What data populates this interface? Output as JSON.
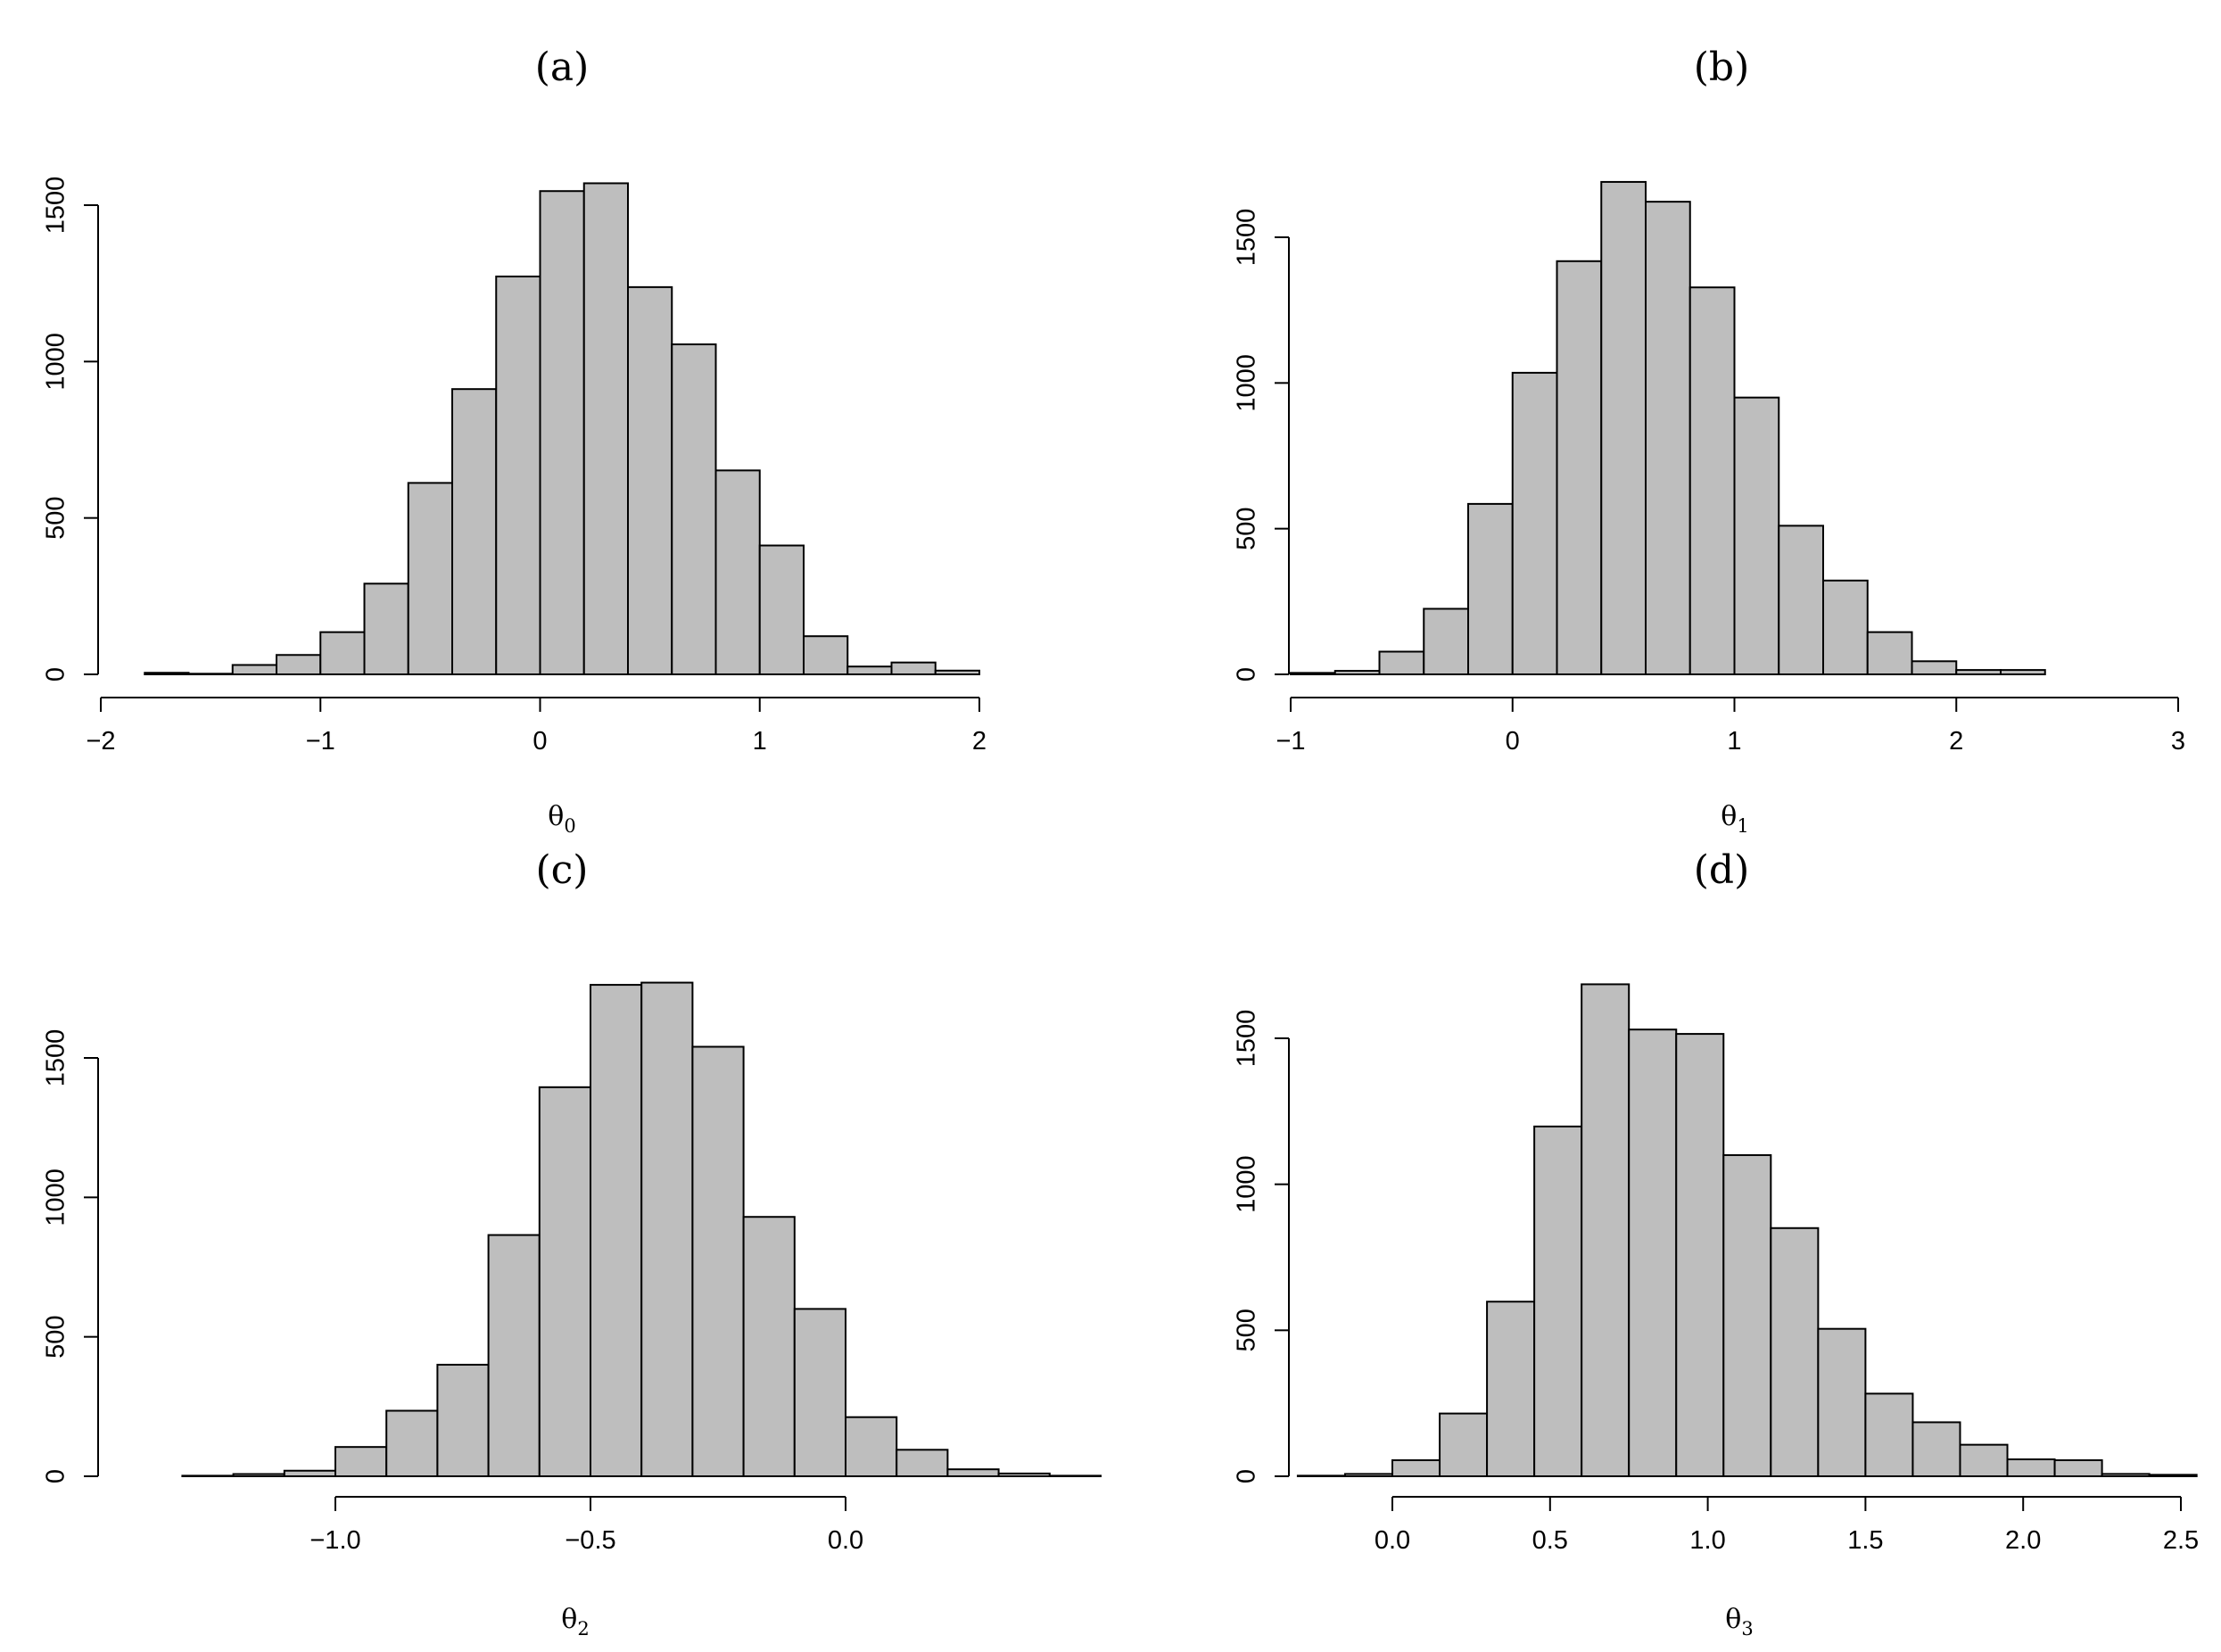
{
  "chart_data": [
    {
      "type": "bar",
      "title": "(a)",
      "xlabel": "θ",
      "xlabel_sub": "0",
      "ylabel": "",
      "bin_width": 0.2,
      "bin_start": -1.8,
      "values": [
        5,
        2,
        30,
        62,
        135,
        290,
        612,
        912,
        1272,
        1545,
        1570,
        1238,
        1055,
        652,
        412,
        122,
        25,
        38,
        12
      ],
      "xlim": [
        -2,
        2.2
      ],
      "ylim": [
        0,
        1500
      ],
      "x_ticks": [
        -2,
        -1,
        0,
        1,
        2
      ],
      "x_tick_labels": [
        "−2",
        "−1",
        "0",
        "1",
        "2"
      ],
      "y_ticks": [
        0,
        500,
        1000,
        1500
      ],
      "y_tick_labels": [
        "0",
        "500",
        "1000",
        "1500"
      ]
    },
    {
      "type": "bar",
      "title": "(b)",
      "xlabel": "θ",
      "xlabel_sub": "1",
      "ylabel": "",
      "bin_width": 0.2,
      "bin_start": -1.0,
      "values": [
        5,
        12,
        78,
        225,
        585,
        1035,
        1418,
        1690,
        1622,
        1328,
        950,
        510,
        322,
        145,
        45,
        15,
        15
      ],
      "xlim": [
        -1,
        3
      ],
      "ylim": [
        0,
        1500
      ],
      "x_ticks": [
        -1,
        0,
        1,
        2,
        3
      ],
      "x_tick_labels": [
        "−1",
        "0",
        "1",
        "2",
        "3"
      ],
      "y_ticks": [
        0,
        500,
        1000,
        1500
      ],
      "y_tick_labels": [
        "0",
        "500",
        "1000",
        "1500"
      ]
    },
    {
      "type": "bar",
      "title": "(c)",
      "xlabel": "θ",
      "xlabel_sub": "2",
      "ylabel": "",
      "bin_width": 0.1,
      "bin_start": -1.4,
      "values": [
        0,
        2,
        8,
        20,
        105,
        235,
        400,
        865,
        1395,
        1762,
        1770,
        1540,
        930,
        600,
        212,
        95,
        25,
        10,
        2
      ],
      "xlim": [
        -1.0,
        0.0
      ],
      "ylim": [
        0,
        1500
      ],
      "x_ticks": [
        -1.0,
        -0.5,
        0.0
      ],
      "x_tick_labels": [
        "−1.0",
        "−0.5",
        "0.0"
      ],
      "y_ticks": [
        0,
        500,
        1000,
        1500
      ],
      "y_tick_labels": [
        "0",
        "500",
        "1000",
        "1500"
      ]
    },
    {
      "type": "bar",
      "title": "(d)",
      "xlabel": "θ",
      "xlabel_sub": "3",
      "ylabel": "",
      "bin_width": 0.15,
      "bin_start": -0.3,
      "values": [
        2,
        8,
        55,
        215,
        598,
        1198,
        1685,
        1530,
        1515,
        1100,
        850,
        505,
        283,
        185,
        108,
        58,
        55,
        8,
        5
      ],
      "xlim": [
        0.0,
        2.5
      ],
      "ylim": [
        0,
        1500
      ],
      "x_ticks": [
        0.0,
        0.5,
        1.0,
        1.5,
        2.0,
        2.5
      ],
      "x_tick_labels": [
        "0.0",
        "0.5",
        "1.0",
        "1.5",
        "2.0",
        "2.5"
      ],
      "y_ticks": [
        0,
        500,
        1000,
        1500
      ],
      "y_tick_labels": [
        "0",
        "500",
        "1000",
        "1500"
      ]
    }
  ]
}
